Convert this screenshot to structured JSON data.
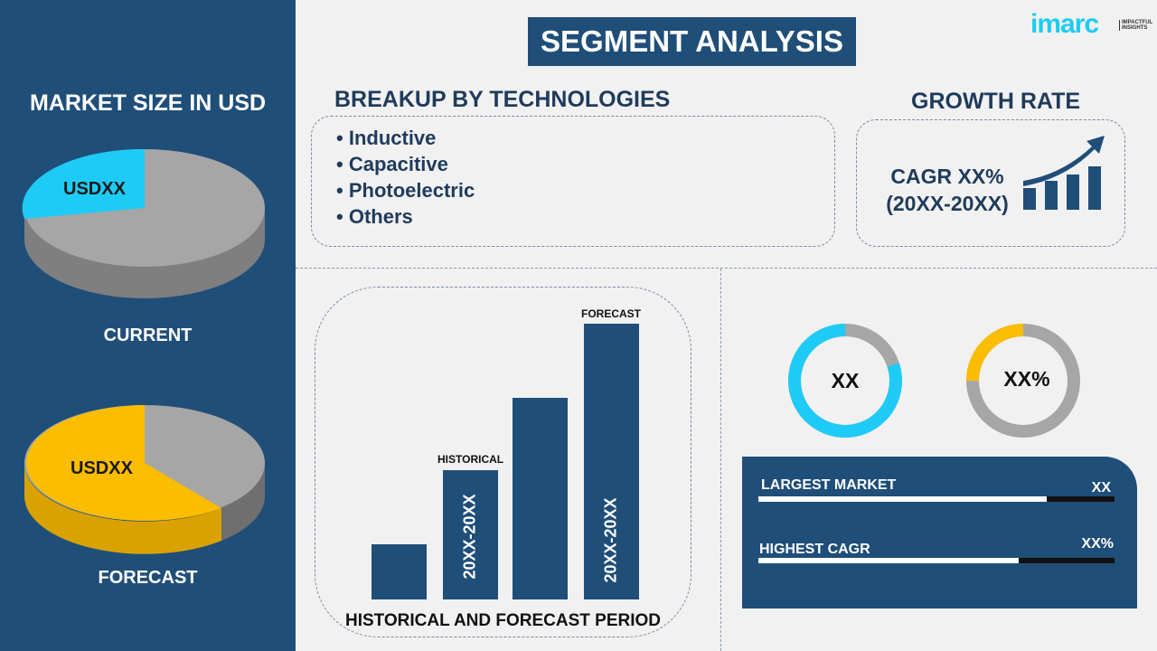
{
  "logo": {
    "brand": "imarc",
    "tagline": "IMPACTFUL INSIGHTS"
  },
  "title": "SEGMENT ANALYSIS",
  "market_size": {
    "heading": "MARKET SIZE IN USD",
    "current": {
      "label": "CURRENT",
      "value": "USDXX",
      "highlight_share": 0.25,
      "color": "#1ecbf6"
    },
    "forecast": {
      "label": "FORECAST",
      "value": "USDXX",
      "highlight_share": 0.6,
      "color": "#fbbd00"
    }
  },
  "breakup": {
    "heading": "BREAKUP BY TECHNOLOGIES",
    "items": [
      "Inductive",
      "Capacitive",
      "Photoelectric",
      "Others"
    ]
  },
  "growth": {
    "heading": "GROWTH RATE",
    "cagr": "CAGR XX%",
    "period": "(20XX-20XX)"
  },
  "period_chart": {
    "caption": "HISTORICAL AND FORECAST PERIOD",
    "historical_label": "HISTORICAL",
    "forecast_label": "FORECAST",
    "historical_range": "20XX-20XX",
    "forecast_range": "20XX-20XX",
    "relative_heights": [
      0.2,
      0.47,
      0.73,
      1.0
    ]
  },
  "donuts": [
    {
      "value": "XX",
      "fill": 0.8,
      "color": "#1ecbf6"
    },
    {
      "value": "XX%",
      "fill": 0.25,
      "color": "#fbbd00"
    }
  ],
  "stats": [
    {
      "label": "LARGEST MARKET",
      "value": "XX",
      "fill": 0.81
    },
    {
      "label": "HIGHEST CAGR",
      "value": "XX%",
      "fill": 0.73
    }
  ],
  "colors": {
    "navy": "#1f4e79",
    "grey": "#a6a6a6",
    "cyan": "#1ecbf6",
    "yellow": "#fbbd00"
  }
}
